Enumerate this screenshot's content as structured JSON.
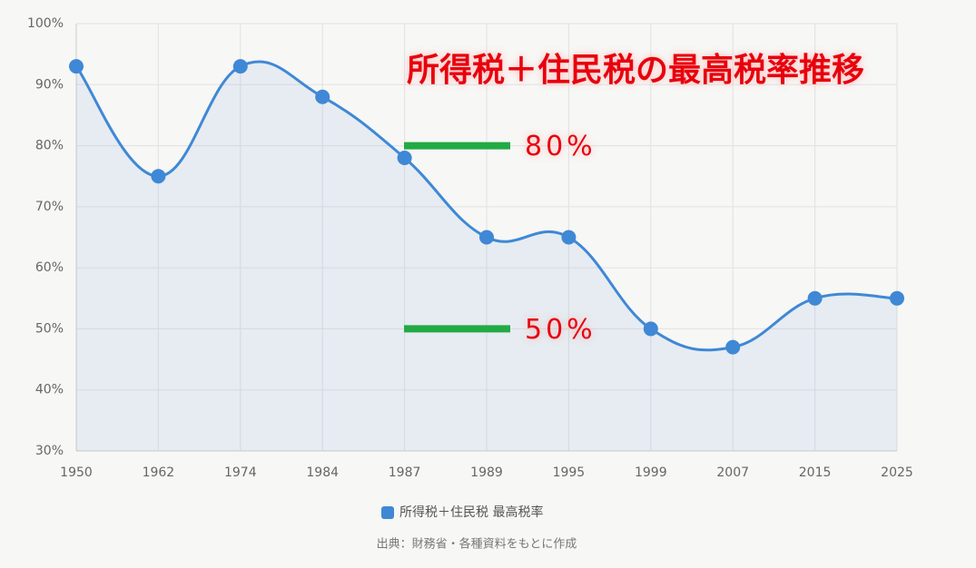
{
  "chart_data": {
    "type": "line",
    "title": "所得税＋住民税の最高税率推移",
    "categories": [
      "1950",
      "1962",
      "1974",
      "1984",
      "1987",
      "1989",
      "1995",
      "1999",
      "2007",
      "2015",
      "2025"
    ],
    "series": [
      {
        "name": "所得税＋住民税 最高税率",
        "color": "#3f88d6",
        "values": [
          93,
          75,
          93,
          88,
          78,
          65,
          65,
          50,
          47,
          55,
          55
        ]
      }
    ],
    "ylim": [
      30,
      100
    ],
    "yticks": [
      {
        "value": 30,
        "label": "30%"
      },
      {
        "value": 40,
        "label": "40%"
      },
      {
        "value": 50,
        "label": "50%"
      },
      {
        "value": 60,
        "label": "60%"
      },
      {
        "value": 70,
        "label": "70%"
      },
      {
        "value": 80,
        "label": "80%"
      },
      {
        "value": 90,
        "label": "90%"
      },
      {
        "value": 100,
        "label": "100%"
      }
    ],
    "grid": true,
    "legend": "bottom",
    "annotations": [
      {
        "text": "80%",
        "value": 80,
        "color": "#22aa44"
      },
      {
        "text": "50%",
        "value": 50,
        "color": "#22aa44"
      }
    ],
    "source": "出典：財務省・各種資料をもとに作成"
  }
}
